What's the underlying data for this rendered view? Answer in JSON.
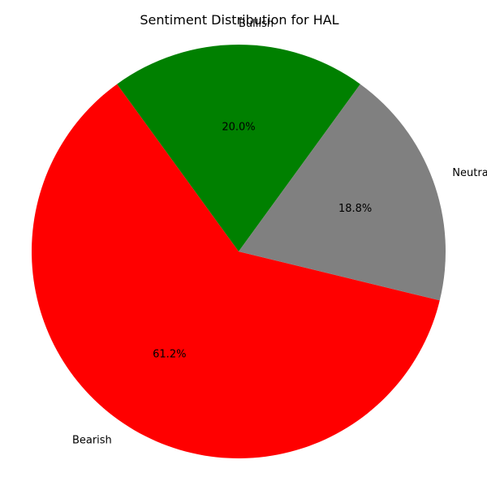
{
  "chart_data": {
    "type": "pie",
    "title": "Sentiment Distribution for HAL",
    "slices": [
      {
        "label": "Bullish",
        "value": 20.0,
        "display": "20.0%",
        "color": "#008000"
      },
      {
        "label": "Bearish",
        "value": 61.2,
        "display": "61.2%",
        "color": "#ff0000"
      },
      {
        "label": "Neutral",
        "value": 18.8,
        "display": "18.8%",
        "color": "#808080"
      }
    ],
    "start_angle_deg": 54,
    "direction": "counterclockwise",
    "legend": "none"
  }
}
